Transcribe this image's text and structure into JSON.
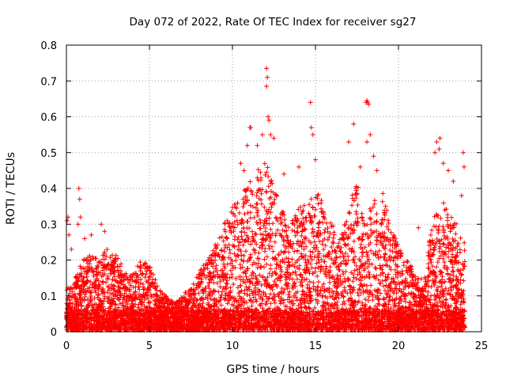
{
  "chart_data": {
    "type": "scatter",
    "title": "Day 072 of 2022, Rate Of TEC Index for receiver sg27",
    "xlabel": "GPS time / hours",
    "ylabel": "ROTI / TECUs",
    "xlim": [
      0,
      25
    ],
    "ylim": [
      0,
      0.8
    ],
    "xticks": [
      "0",
      "5",
      "10",
      "15",
      "20",
      "25"
    ],
    "yticks": [
      "0",
      "0.1",
      "0.2",
      "0.3",
      "0.4",
      "0.5",
      "0.6",
      "0.7",
      "0.8"
    ],
    "grid": true,
    "marker": "plus",
    "series_color": "#ff0000",
    "envelope": {
      "description_units": "upper bound of the dense point cloud, ROTI TECU vs hours",
      "x": [
        0,
        0.5,
        1,
        1.5,
        2,
        2.5,
        3,
        3.5,
        4,
        4.5,
        5,
        5.5,
        6,
        6.5,
        7,
        7.5,
        8,
        8.5,
        9,
        9.5,
        10,
        10.5,
        11,
        11.5,
        12,
        12.5,
        13,
        13.5,
        14,
        14.5,
        15,
        15.5,
        16,
        16.5,
        17,
        17.5,
        18,
        18.5,
        19,
        19.5,
        20,
        20.5,
        21,
        21.5,
        22,
        22.5,
        23,
        23.5,
        24
      ],
      "y": [
        0.12,
        0.15,
        0.2,
        0.22,
        0.21,
        0.24,
        0.22,
        0.17,
        0.16,
        0.2,
        0.19,
        0.13,
        0.1,
        0.08,
        0.1,
        0.13,
        0.17,
        0.2,
        0.26,
        0.3,
        0.36,
        0.38,
        0.42,
        0.45,
        0.48,
        0.4,
        0.34,
        0.3,
        0.36,
        0.35,
        0.4,
        0.36,
        0.3,
        0.26,
        0.36,
        0.42,
        0.3,
        0.38,
        0.4,
        0.3,
        0.24,
        0.2,
        0.17,
        0.14,
        0.3,
        0.38,
        0.34,
        0.3,
        0.25
      ]
    },
    "outliers": [
      {
        "x": 0.05,
        "y": 0.31
      },
      {
        "x": 0.1,
        "y": 0.32
      },
      {
        "x": 0.15,
        "y": 0.27
      },
      {
        "x": 0.3,
        "y": 0.23
      },
      {
        "x": 0.7,
        "y": 0.3
      },
      {
        "x": 0.75,
        "y": 0.4
      },
      {
        "x": 0.8,
        "y": 0.37
      },
      {
        "x": 0.85,
        "y": 0.32
      },
      {
        "x": 1.1,
        "y": 0.26
      },
      {
        "x": 1.5,
        "y": 0.27
      },
      {
        "x": 2.1,
        "y": 0.3
      },
      {
        "x": 2.3,
        "y": 0.28
      },
      {
        "x": 10.5,
        "y": 0.47
      },
      {
        "x": 10.7,
        "y": 0.45
      },
      {
        "x": 11.05,
        "y": 0.57
      },
      {
        "x": 11.1,
        "y": 0.57
      },
      {
        "x": 10.9,
        "y": 0.52
      },
      {
        "x": 11.5,
        "y": 0.52
      },
      {
        "x": 11.8,
        "y": 0.55
      },
      {
        "x": 12.05,
        "y": 0.735
      },
      {
        "x": 12.1,
        "y": 0.71
      },
      {
        "x": 12.05,
        "y": 0.685
      },
      {
        "x": 12.15,
        "y": 0.6
      },
      {
        "x": 12.2,
        "y": 0.59
      },
      {
        "x": 12.3,
        "y": 0.55
      },
      {
        "x": 12.5,
        "y": 0.54
      },
      {
        "x": 13.1,
        "y": 0.44
      },
      {
        "x": 14.0,
        "y": 0.46
      },
      {
        "x": 14.7,
        "y": 0.64
      },
      {
        "x": 14.75,
        "y": 0.57
      },
      {
        "x": 14.85,
        "y": 0.55
      },
      {
        "x": 15.0,
        "y": 0.48
      },
      {
        "x": 17.0,
        "y": 0.53
      },
      {
        "x": 17.3,
        "y": 0.58
      },
      {
        "x": 17.7,
        "y": 0.46
      },
      {
        "x": 18.05,
        "y": 0.64
      },
      {
        "x": 18.1,
        "y": 0.645
      },
      {
        "x": 18.15,
        "y": 0.64
      },
      {
        "x": 18.2,
        "y": 0.635
      },
      {
        "x": 18.3,
        "y": 0.55
      },
      {
        "x": 18.1,
        "y": 0.53
      },
      {
        "x": 18.5,
        "y": 0.49
      },
      {
        "x": 18.7,
        "y": 0.45
      },
      {
        "x": 21.2,
        "y": 0.29
      },
      {
        "x": 22.2,
        "y": 0.5
      },
      {
        "x": 22.3,
        "y": 0.53
      },
      {
        "x": 22.5,
        "y": 0.54
      },
      {
        "x": 22.45,
        "y": 0.51
      },
      {
        "x": 22.7,
        "y": 0.47
      },
      {
        "x": 23.0,
        "y": 0.45
      },
      {
        "x": 23.3,
        "y": 0.42
      },
      {
        "x": 23.9,
        "y": 0.5
      },
      {
        "x": 23.95,
        "y": 0.46
      },
      {
        "x": 23.8,
        "y": 0.38
      }
    ]
  }
}
